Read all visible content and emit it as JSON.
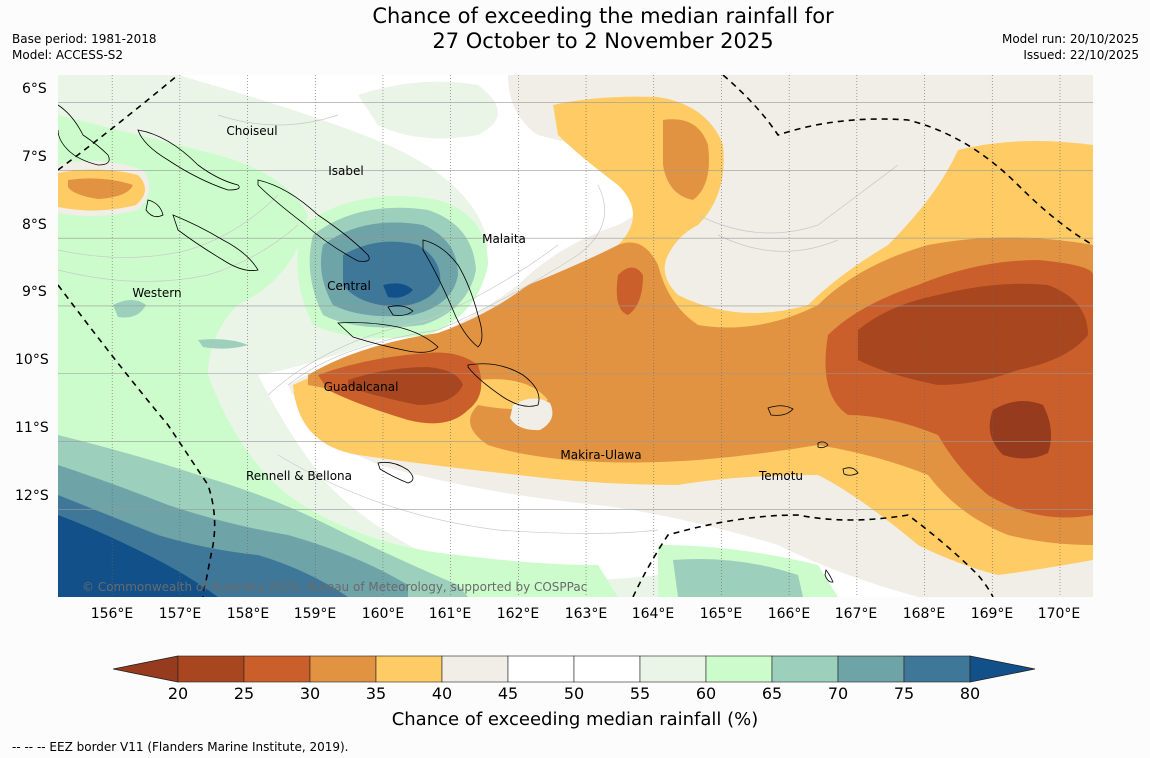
{
  "title": {
    "line1": "Chance of exceeding the median rainfall for",
    "line2": "27 October to 2 November 2025"
  },
  "meta_left": {
    "base_period": "Base period: 1981-2018",
    "model": "Model: ACCESS-S2"
  },
  "meta_right": {
    "model_run": "Model run: 20/10/2025",
    "issued": "Issued: 22/10/2025"
  },
  "map": {
    "region": "Solomon Islands",
    "lat_labels": [
      "6°S",
      "7°S",
      "8°S",
      "9°S",
      "10°S",
      "11°S",
      "12°S"
    ],
    "lon_labels": [
      "156°E",
      "157°E",
      "158°E",
      "159°E",
      "160°E",
      "161°E",
      "162°E",
      "163°E",
      "164°E",
      "165°E",
      "166°E",
      "167°E",
      "168°E",
      "169°E",
      "170°E"
    ],
    "place_labels": [
      {
        "name": "Choiseul",
        "lon": 157.2,
        "lat": -6.6
      },
      {
        "name": "Isabel",
        "lon": 159.45,
        "lat": -7.2
      },
      {
        "name": "Malaita",
        "lon": 161.8,
        "lat": -8.2
      },
      {
        "name": "Western",
        "lon": 156.65,
        "lat": -9.0
      },
      {
        "name": "Central",
        "lon": 159.5,
        "lat": -8.9
      },
      {
        "name": "Guadalcanal",
        "lon": 159.7,
        "lat": -10.4
      },
      {
        "name": "Makira-Ulawa",
        "lon": 163.25,
        "lat": -11.4
      },
      {
        "name": "Temotu",
        "lon": 165.95,
        "lat": -11.7
      },
      {
        "name": "Rennell & Bellona",
        "lon": 157.75,
        "lat": -11.7
      }
    ],
    "copyright": "© Commonwealth of Australia 2025, Bureau of Meteorology, supported by COSPPac",
    "gridlines": true,
    "eez_border_shown": true
  },
  "colorbar": {
    "ticks": [
      "20",
      "25",
      "30",
      "35",
      "40",
      "45",
      "50",
      "55",
      "60",
      "65",
      "70",
      "75",
      "80"
    ],
    "colors": [
      "#a8471f",
      "#ca5f2b",
      "#e19342",
      "#fecb65",
      "#f1eee8",
      "#ffffff",
      "#ffffff",
      "#eaf5e8",
      "#ccfccb",
      "#9ccfbc",
      "#6ea3a8",
      "#3f7799"
    ],
    "under_color": "#963b1d",
    "over_color": "#12508a",
    "label": "Chance of exceeding median rainfall (%)",
    "extend": "both"
  },
  "footer": "-- -- -- EEZ border V11 (Flanders Marine Institute, 2019)."
}
